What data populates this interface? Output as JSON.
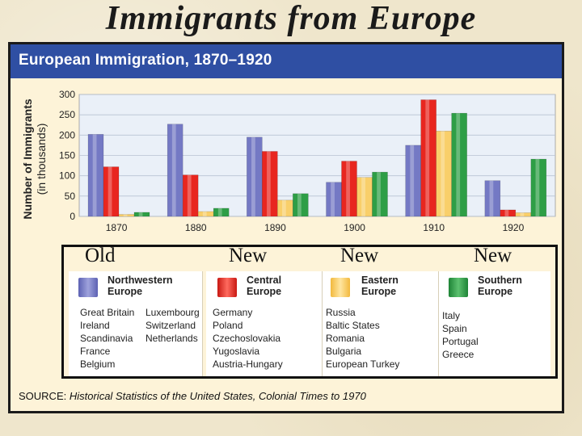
{
  "slide_title": "Immigrants from Europe",
  "colors": {
    "northwestern": "#7479c4",
    "central": "#e8261f",
    "eastern": "#f9cf6a",
    "southern": "#2e9e46",
    "banner": "#2f4fa3"
  },
  "chart_data": {
    "type": "bar",
    "title": "European Immigration, 1870–1920",
    "ylabel_main": "Number of Immigrants",
    "ylabel_sub": "(in thousands)",
    "xlabel": "",
    "ylim": [
      0,
      300
    ],
    "yticks": [
      "0",
      "50",
      "100",
      "150",
      "200",
      "250",
      "300"
    ],
    "grid": true,
    "categories": [
      "1870",
      "1880",
      "1890",
      "1900",
      "1910",
      "1920"
    ],
    "series": [
      {
        "name": "Northwestern Europe",
        "color": "#7479c4",
        "values": [
          202,
          227,
          195,
          84,
          175,
          88
        ]
      },
      {
        "name": "Central Europe",
        "color": "#e8261f",
        "values": [
          122,
          102,
          160,
          136,
          287,
          16
        ]
      },
      {
        "name": "Eastern Europe",
        "color": "#f9cf6a",
        "values": [
          5,
          12,
          40,
          96,
          210,
          9
        ]
      },
      {
        "name": "Southern Europe",
        "color": "#2e9e46",
        "values": [
          10,
          20,
          56,
          109,
          254,
          141
        ]
      }
    ]
  },
  "era_labels": [
    "Old",
    "New",
    "New",
    "New"
  ],
  "legend": [
    {
      "title_line1": "Northwestern",
      "title_line2": "Europe",
      "countries_col1": [
        "Great Britain",
        "Ireland",
        "Scandinavia",
        "France",
        "Belgium"
      ],
      "countries_col2": [
        "Luxembourg",
        "Switzerland",
        "Netherlands"
      ]
    },
    {
      "title_line1": "Central",
      "title_line2": "Europe",
      "countries_col1": [
        "Germany",
        "Poland",
        "Czechoslovakia",
        "Yugoslavia",
        "Austria-Hungary"
      ],
      "countries_col2": []
    },
    {
      "title_line1": "Eastern",
      "title_line2": "Europe",
      "countries_col1": [
        "Russia",
        "Baltic States",
        "Romania",
        "Bulgaria",
        "European Turkey"
      ],
      "countries_col2": []
    },
    {
      "title_line1": "Southern",
      "title_line2": "Europe",
      "countries_col1": [
        "Italy",
        "Spain",
        "Portugal",
        "Greece"
      ],
      "countries_col2": []
    }
  ],
  "source": {
    "label": "SOURCE:",
    "text": "Historical Statistics of the United States, Colonial Times to 1970"
  }
}
